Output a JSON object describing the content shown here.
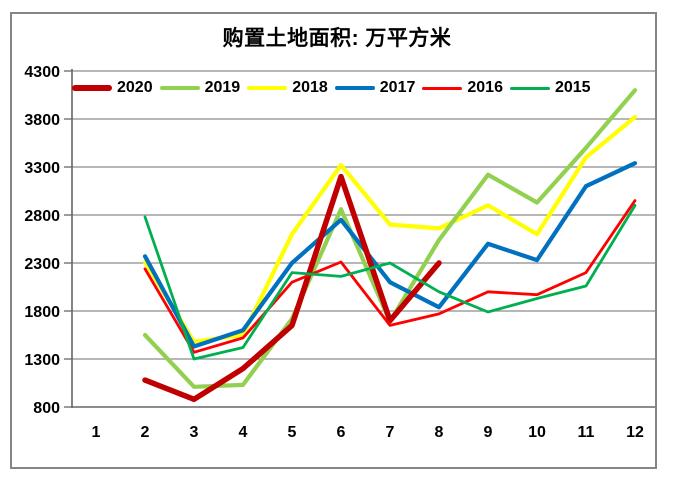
{
  "chart_data": {
    "type": "line",
    "title": "购置土地面积: 万平方米",
    "legend_position": "top-left-inside",
    "grid": true,
    "x_tick_labels": [
      "1",
      "2",
      "3",
      "4",
      "5",
      "6",
      "7",
      "8",
      "9",
      "10",
      "11",
      "12"
    ],
    "y_tick_labels": [
      "800",
      "1300",
      "1800",
      "2300",
      "2800",
      "3300",
      "3800",
      "4300"
    ],
    "y_axis": {
      "min": 800,
      "max": 4300,
      "step": 500
    },
    "x_axis": {
      "min": 1,
      "max": 12
    },
    "series": [
      {
        "name": "2020",
        "color": "#C00000",
        "width": 5.5,
        "values": [
          null,
          1080,
          880,
          1200,
          1650,
          3200,
          1700,
          2300,
          null,
          null,
          null,
          null
        ]
      },
      {
        "name": "2019",
        "color": "#92D050",
        "width": 4.2,
        "values": [
          null,
          1550,
          1010,
          1030,
          1720,
          2860,
          1690,
          2540,
          3220,
          2930,
          3500,
          4100
        ]
      },
      {
        "name": "2018",
        "color": "#FFFF00",
        "width": 4.2,
        "values": [
          null,
          2310,
          1480,
          1550,
          2600,
          3320,
          2700,
          2660,
          2900,
          2600,
          3400,
          3820
        ]
      },
      {
        "name": "2017",
        "color": "#0070C0",
        "width": 4.2,
        "values": [
          null,
          2370,
          1430,
          1600,
          2300,
          2750,
          2100,
          1840,
          2500,
          2330,
          3100,
          3340
        ]
      },
      {
        "name": "2016",
        "color": "#FF0000",
        "width": 2.8,
        "values": [
          null,
          2240,
          1370,
          1520,
          2100,
          2310,
          1650,
          1770,
          2000,
          1970,
          2200,
          2950
        ]
      },
      {
        "name": "2015",
        "color": "#00B050",
        "width": 2.8,
        "values": [
          null,
          2780,
          1300,
          1420,
          2200,
          2160,
          2300,
          2000,
          1790,
          1930,
          2060,
          2900
        ]
      }
    ],
    "draw_order": [
      "2018",
      "2019",
      "2017",
      "2020",
      "2016",
      "2015"
    ],
    "colors": {
      "gridline": "#8C8C8C",
      "axis": "#666666",
      "text": "#000000",
      "frame_border": "#858585",
      "background": "#FFFFFF"
    }
  }
}
